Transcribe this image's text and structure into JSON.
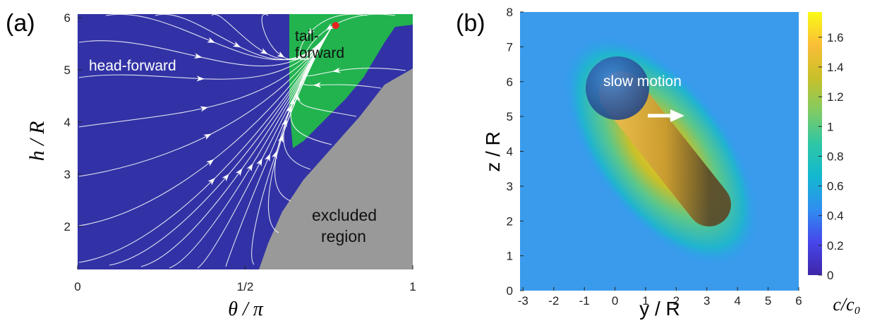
{
  "chart_data": [
    {
      "type": "phase",
      "panel_label": "(a)",
      "xlabel": "θ / π",
      "ylabel": "h / R",
      "xlim": [
        0,
        1
      ],
      "ylim": [
        1.2,
        6
      ],
      "xticks": [
        0,
        {
          "value": 0.5,
          "label": "1/2"
        },
        1
      ],
      "yticks": [
        2,
        3,
        4,
        5,
        6
      ],
      "regions": [
        {
          "name": "head-forward",
          "color": "#3232a6"
        },
        {
          "name": [
            "tail-",
            "forward"
          ],
          "color": "#22b34f"
        },
        {
          "name": [
            "excluded",
            "region"
          ],
          "color": "#999999"
        }
      ],
      "fixed_point": {
        "x": 0.77,
        "y": 5.85,
        "color": "#e8231e"
      },
      "streamline_color": "#ffffff"
    },
    {
      "type": "heatmap",
      "panel_label": "(b)",
      "xlabel": "y / R",
      "ylabel": "z / R",
      "xlim": [
        -3.1,
        6
      ],
      "ylim": [
        0,
        8
      ],
      "xticks": [
        -3,
        -2,
        -1,
        0,
        1,
        2,
        3,
        4,
        5,
        6
      ],
      "yticks": [
        0,
        1,
        2,
        3,
        4,
        5,
        6,
        7,
        8
      ],
      "annotation": "slow motion",
      "colorbar": {
        "label": "c/c₀",
        "clim": [
          0,
          1.77
        ],
        "ticks": [
          0,
          0.2,
          0.4,
          0.6,
          0.8,
          1,
          1.2,
          1.4,
          1.6
        ],
        "colormap": [
          "#3e26a8",
          "#4746eb",
          "#2f8ef0",
          "#13b8d0",
          "#2ec7a5",
          "#81cb63",
          "#c8c029",
          "#fbbe38",
          "#f9fb15"
        ]
      }
    }
  ]
}
